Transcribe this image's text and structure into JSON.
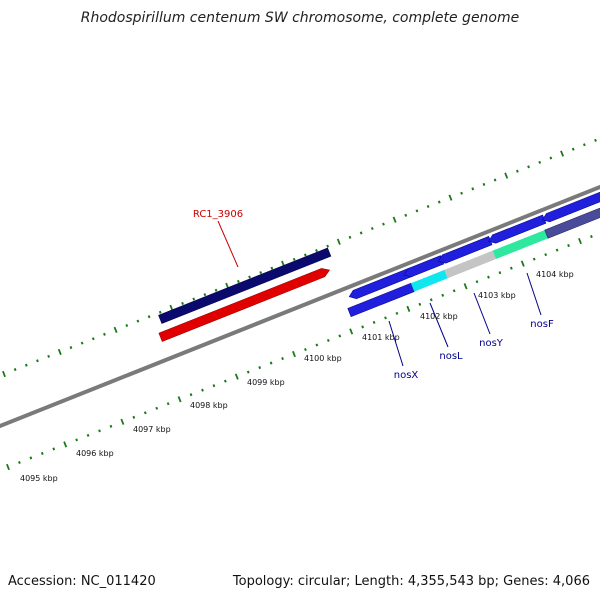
{
  "title": "Rhodospirillum centenum SW chromosome, complete genome",
  "footer": {
    "accession": "Accession: NC_011420",
    "summary": "Topology: circular; Length: 4,355,543 bp; Genes: 4,066"
  },
  "colors": {
    "backbone": "#808080",
    "tick": "#1a7a1a",
    "gene_label": "#00008b",
    "rc_label": "#cc0000"
  },
  "ticks": [
    {
      "label": "4095 kbp",
      "value_kbp": 4095
    },
    {
      "label": "4096 kbp",
      "value_kbp": 4096
    },
    {
      "label": "4097 kbp",
      "value_kbp": 4097
    },
    {
      "label": "4098 kbp",
      "value_kbp": 4098
    },
    {
      "label": "4099 kbp",
      "value_kbp": 4099
    },
    {
      "label": "4100 kbp",
      "value_kbp": 4100
    },
    {
      "label": "4101 kbp",
      "value_kbp": 4101
    },
    {
      "label": "4102 kbp",
      "value_kbp": 4102
    },
    {
      "label": "4103 kbp",
      "value_kbp": 4103
    },
    {
      "label": "4104 kbp",
      "value_kbp": 4104
    }
  ],
  "gene_labels": [
    {
      "id": "rc1",
      "text": "RC1_3906"
    },
    {
      "id": "nosx",
      "text": "nosX"
    },
    {
      "id": "nosl",
      "text": "nosL"
    },
    {
      "id": "nosy",
      "text": "nosY"
    },
    {
      "id": "nosf",
      "text": "nosF"
    }
  ]
}
